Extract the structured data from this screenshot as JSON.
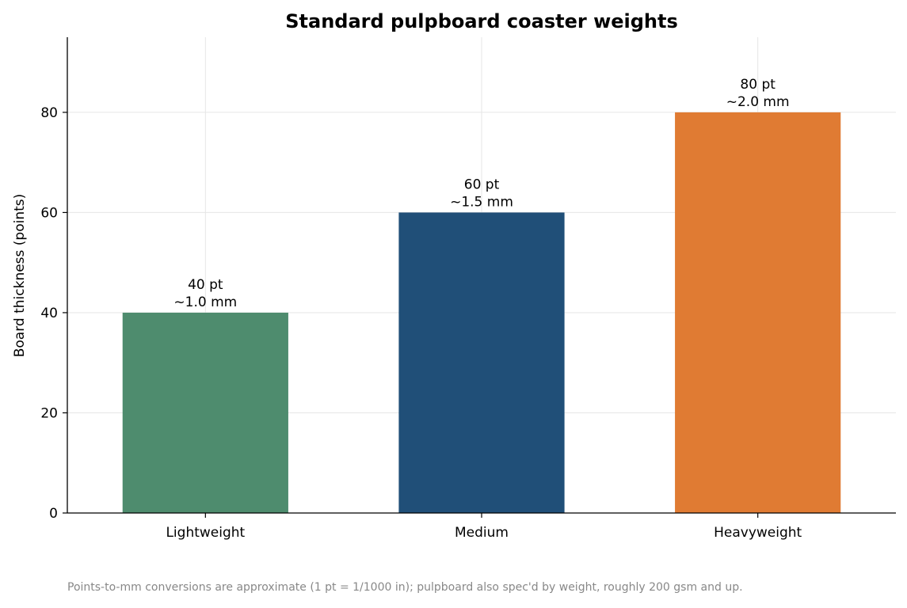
{
  "chart_data": {
    "type": "bar",
    "title": "Standard pulpboard coaster weights",
    "xlabel": "",
    "ylabel": "Board thickness (points)",
    "categories": [
      "Lightweight",
      "Medium",
      "Heavyweight"
    ],
    "values": [
      40,
      60,
      80
    ],
    "data_labels": [
      [
        "40 pt",
        "~1.0 mm"
      ],
      [
        "60 pt",
        "~1.5 mm"
      ],
      [
        "80 pt",
        "~2.0 mm"
      ]
    ],
    "colors": [
      "#4e8c6e",
      "#204f78",
      "#e07b33"
    ],
    "ylim": [
      0,
      95
    ],
    "yticks": [
      0,
      20,
      40,
      60,
      80
    ],
    "grid": true,
    "legend": "none"
  },
  "footnote": "Points-to-mm conversions are approximate (1 pt = 1/1000 in); pulpboard also spec'd by weight, roughly 200 gsm and up."
}
